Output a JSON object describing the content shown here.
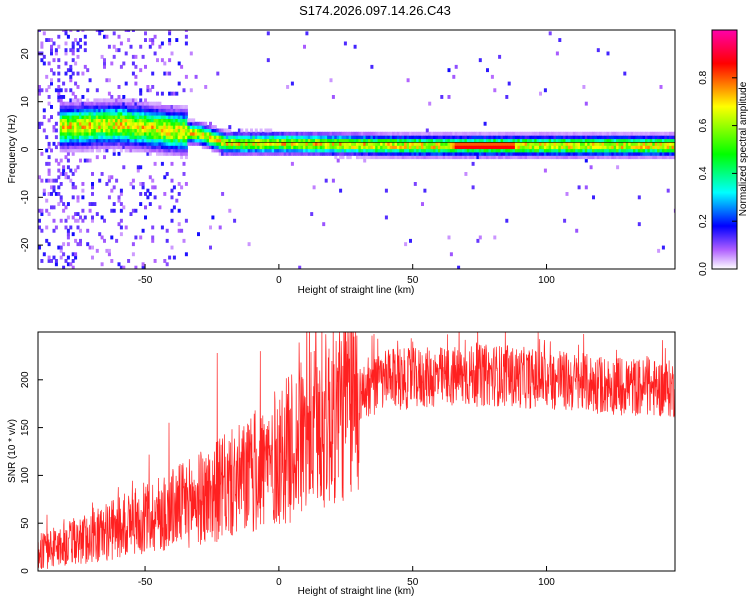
{
  "title": "S174.2026.097.14.26.C43",
  "chart_data": [
    {
      "type": "heatmap",
      "id": "spectrogram",
      "xlabel": "Height of straight line (km)",
      "ylabel": "Frequency (Hz)",
      "xlim": [
        -90,
        148
      ],
      "ylim": [
        -25,
        25
      ],
      "xticks": [
        -50,
        0,
        50,
        100
      ],
      "yticks": [
        -20,
        -10,
        0,
        10,
        20
      ],
      "ytick_labels": [
        "-20",
        "-10",
        "0",
        "10",
        "20"
      ],
      "colorbar": {
        "label": "Normalized spectral amplitude",
        "range": [
          0,
          1
        ],
        "ticks": [
          0.0,
          0.2,
          0.4,
          0.6,
          0.8
        ],
        "tick_labels": [
          "0.0",
          "0.2",
          "0.4",
          "0.6",
          "0.8"
        ],
        "colors": [
          "#ffffff",
          "#9b30ff",
          "#0000ff",
          "#00ffff",
          "#00ff00",
          "#ffff00",
          "#ff0000",
          "#ff00aa"
        ]
      },
      "ridge_frequency_hz": [
        {
          "x": -80,
          "f": 4.5
        },
        {
          "x": -60,
          "f": 5.0
        },
        {
          "x": -45,
          "f": 4.0
        },
        {
          "x": -30,
          "f": 3.0
        },
        {
          "x": -20,
          "f": 1.0
        },
        {
          "x": 0,
          "f": 1.0
        },
        {
          "x": 50,
          "f": 0.5
        },
        {
          "x": 100,
          "f": 0.5
        },
        {
          "x": 148,
          "f": 0.5
        }
      ],
      "peak_band_km": [
        65,
        88
      ]
    },
    {
      "type": "line",
      "id": "snr",
      "xlabel": "Height of straight line (km)",
      "ylabel": "SNR (10 * v/v)",
      "xlim": [
        -90,
        148
      ],
      "ylim": [
        0,
        250
      ],
      "xticks": [
        -50,
        0,
        50,
        100
      ],
      "yticks": [
        0,
        50,
        100,
        150,
        200
      ],
      "color": "#ff2020",
      "trend": [
        {
          "x": -90,
          "y": 20
        },
        {
          "x": -70,
          "y": 35
        },
        {
          "x": -50,
          "y": 55
        },
        {
          "x": -30,
          "y": 75
        },
        {
          "x": -10,
          "y": 100
        },
        {
          "x": 10,
          "y": 140
        },
        {
          "x": 30,
          "y": 185
        },
        {
          "x": 40,
          "y": 200
        },
        {
          "x": 80,
          "y": 205
        },
        {
          "x": 120,
          "y": 195
        },
        {
          "x": 148,
          "y": 190
        }
      ],
      "spikes": [
        {
          "x": -41,
          "y": 155
        },
        {
          "x": -23,
          "y": 228
        },
        {
          "x": -7,
          "y": 230
        },
        {
          "x": 37,
          "y": 243
        },
        {
          "x": 50,
          "y": 240
        },
        {
          "x": 105,
          "y": 230
        }
      ]
    }
  ]
}
